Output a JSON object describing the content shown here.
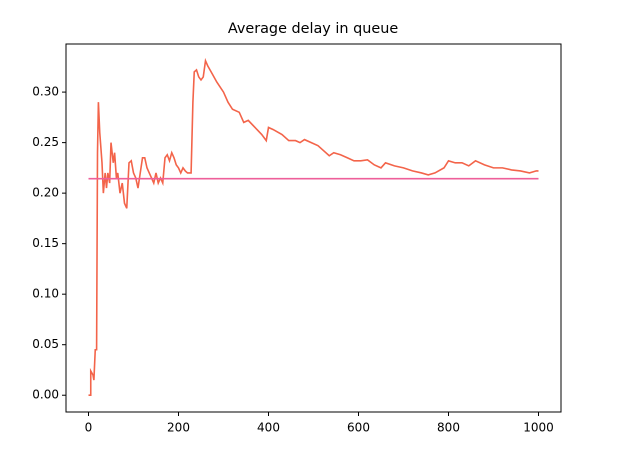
{
  "chart_data": {
    "type": "line",
    "title": "Average delay in queue",
    "xlim": [
      -50,
      1050
    ],
    "xticks": [
      0,
      200,
      400,
      600,
      800,
      1000
    ],
    "ylim": [
      -0.0166,
      0.3476
    ],
    "yticks": [
      {
        "value": 0,
        "label": "0.00"
      },
      {
        "value": 0.05,
        "label": "0.05"
      },
      {
        "value": 0.1,
        "label": "0.10"
      },
      {
        "value": 0.15,
        "label": "0.15"
      },
      {
        "value": 0.2,
        "label": "0.20"
      },
      {
        "value": 0.25,
        "label": "0.25"
      },
      {
        "value": 0.3,
        "label": "0.30"
      }
    ],
    "series": [
      {
        "color": "#f3644a",
        "x": [
          0,
          5,
          5,
          10,
          12,
          15,
          18,
          20,
          22,
          25,
          30,
          33,
          37,
          40,
          43,
          47,
          50,
          55,
          58,
          62,
          65,
          70,
          75,
          80,
          85,
          90,
          95,
          100,
          105,
          110,
          115,
          120,
          125,
          130,
          135,
          140,
          145,
          150,
          155,
          160,
          165,
          170,
          175,
          180,
          185,
          190,
          195,
          200,
          205,
          210,
          215,
          220,
          228,
          232,
          235,
          240,
          245,
          250,
          255,
          260,
          265,
          270,
          275,
          285,
          300,
          310,
          320,
          335,
          345,
          355,
          370,
          385,
          395,
          400,
          410,
          430,
          445,
          460,
          470,
          480,
          495,
          510,
          520,
          535,
          545,
          560,
          575,
          590,
          605,
          620,
          635,
          650,
          660,
          680,
          700,
          720,
          740,
          755,
          770,
          790,
          800,
          815,
          830,
          845,
          860,
          880,
          900,
          920,
          940,
          960,
          980,
          995,
          1000
        ],
        "values": [
          0,
          0,
          0.024,
          0.02,
          0.015,
          0.045,
          0.045,
          0.24,
          0.29,
          0.26,
          0.23,
          0.2,
          0.22,
          0.205,
          0.22,
          0.21,
          0.25,
          0.23,
          0.24,
          0.215,
          0.22,
          0.2,
          0.21,
          0.19,
          0.185,
          0.23,
          0.232,
          0.22,
          0.215,
          0.205,
          0.22,
          0.235,
          0.235,
          0.225,
          0.22,
          0.215,
          0.21,
          0.22,
          0.21,
          0.215,
          0.21,
          0.235,
          0.238,
          0.232,
          0.24,
          0.235,
          0.228,
          0.225,
          0.22,
          0.225,
          0.222,
          0.22,
          0.22,
          0.29,
          0.32,
          0.322,
          0.315,
          0.312,
          0.315,
          0.331,
          0.326,
          0.322,
          0.318,
          0.31,
          0.3,
          0.29,
          0.283,
          0.28,
          0.27,
          0.272,
          0.265,
          0.258,
          0.252,
          0.265,
          0.263,
          0.258,
          0.252,
          0.252,
          0.25,
          0.253,
          0.25,
          0.247,
          0.243,
          0.237,
          0.24,
          0.238,
          0.235,
          0.232,
          0.232,
          0.233,
          0.228,
          0.225,
          0.23,
          0.227,
          0.225,
          0.222,
          0.22,
          0.218,
          0.22,
          0.225,
          0.232,
          0.23,
          0.23,
          0.227,
          0.232,
          0.228,
          0.225,
          0.225,
          0.223,
          0.222,
          0.22,
          0.222,
          0.222
        ]
      },
      {
        "color": "#ee5f9a",
        "x": [
          0,
          1000
        ],
        "values": [
          0.2143,
          0.2143
        ]
      }
    ]
  }
}
